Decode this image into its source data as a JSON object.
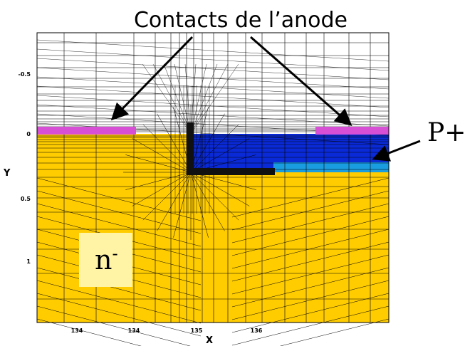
{
  "title": "Contacts de l’anode",
  "axes": {
    "xlabel": "X",
    "ylabel": "Y",
    "x_ticks": [
      "134",
      "134",
      "135",
      "136"
    ],
    "y_ticks": [
      "-0.5",
      "0",
      "0.5",
      "1"
    ]
  },
  "labels": {
    "p_plus": "P+",
    "n_minus_base": "n",
    "n_minus_sup": "-"
  },
  "colors": {
    "n_region": "#ffcc00",
    "p_region": "#0a2ad8",
    "p_region_edge": "#1a9de0",
    "contact": "#d64fd4",
    "label_box": "#fff3a6"
  }
}
